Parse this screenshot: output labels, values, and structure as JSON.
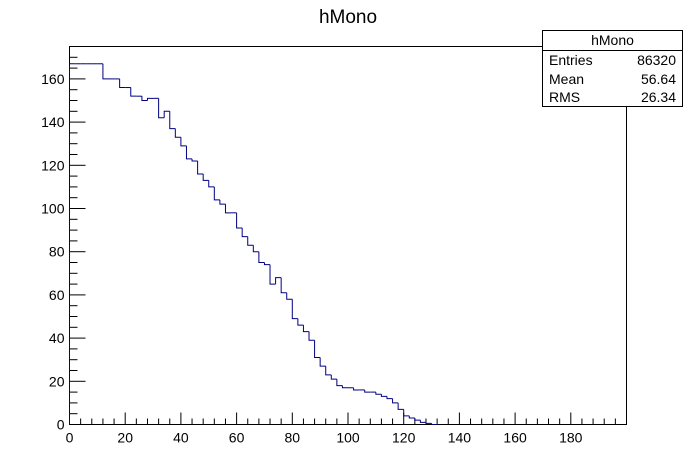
{
  "chart_data": {
    "type": "histogram",
    "title": "hMono",
    "xlabel": "",
    "ylabel": "",
    "xlim": [
      0,
      200
    ],
    "ylim": [
      0,
      175
    ],
    "xticks": [
      0,
      20,
      40,
      60,
      80,
      100,
      120,
      140,
      160,
      180
    ],
    "yticks": [
      0,
      20,
      40,
      60,
      80,
      100,
      120,
      140,
      160
    ],
    "grid": false,
    "line_color": "#000080",
    "bin_width": 2,
    "bins": [
      {
        "x": 0,
        "y": 167
      },
      {
        "x": 2,
        "y": 167
      },
      {
        "x": 4,
        "y": 167
      },
      {
        "x": 6,
        "y": 167
      },
      {
        "x": 8,
        "y": 167
      },
      {
        "x": 10,
        "y": 167
      },
      {
        "x": 12,
        "y": 160
      },
      {
        "x": 14,
        "y": 160
      },
      {
        "x": 16,
        "y": 160
      },
      {
        "x": 18,
        "y": 156
      },
      {
        "x": 20,
        "y": 156
      },
      {
        "x": 22,
        "y": 152
      },
      {
        "x": 24,
        "y": 152
      },
      {
        "x": 26,
        "y": 150
      },
      {
        "x": 28,
        "y": 151
      },
      {
        "x": 30,
        "y": 151
      },
      {
        "x": 32,
        "y": 142
      },
      {
        "x": 34,
        "y": 145
      },
      {
        "x": 36,
        "y": 137
      },
      {
        "x": 38,
        "y": 133
      },
      {
        "x": 40,
        "y": 129
      },
      {
        "x": 42,
        "y": 123
      },
      {
        "x": 44,
        "y": 122
      },
      {
        "x": 46,
        "y": 116
      },
      {
        "x": 48,
        "y": 113
      },
      {
        "x": 50,
        "y": 110
      },
      {
        "x": 52,
        "y": 104
      },
      {
        "x": 54,
        "y": 102
      },
      {
        "x": 56,
        "y": 98
      },
      {
        "x": 58,
        "y": 98
      },
      {
        "x": 60,
        "y": 91
      },
      {
        "x": 62,
        "y": 87
      },
      {
        "x": 64,
        "y": 83
      },
      {
        "x": 66,
        "y": 80
      },
      {
        "x": 68,
        "y": 75
      },
      {
        "x": 70,
        "y": 74
      },
      {
        "x": 72,
        "y": 65
      },
      {
        "x": 74,
        "y": 68
      },
      {
        "x": 76,
        "y": 61
      },
      {
        "x": 78,
        "y": 58
      },
      {
        "x": 80,
        "y": 49
      },
      {
        "x": 82,
        "y": 46
      },
      {
        "x": 84,
        "y": 43
      },
      {
        "x": 86,
        "y": 39
      },
      {
        "x": 88,
        "y": 31
      },
      {
        "x": 90,
        "y": 27
      },
      {
        "x": 92,
        "y": 23
      },
      {
        "x": 94,
        "y": 21
      },
      {
        "x": 96,
        "y": 18
      },
      {
        "x": 98,
        "y": 17
      },
      {
        "x": 100,
        "y": 17
      },
      {
        "x": 102,
        "y": 16
      },
      {
        "x": 104,
        "y": 16
      },
      {
        "x": 106,
        "y": 15
      },
      {
        "x": 108,
        "y": 15
      },
      {
        "x": 110,
        "y": 14
      },
      {
        "x": 112,
        "y": 13
      },
      {
        "x": 114,
        "y": 12
      },
      {
        "x": 116,
        "y": 10
      },
      {
        "x": 118,
        "y": 7
      },
      {
        "x": 120,
        "y": 4
      },
      {
        "x": 122,
        "y": 3
      },
      {
        "x": 124,
        "y": 2
      },
      {
        "x": 126,
        "y": 1
      },
      {
        "x": 128,
        "y": 0.5
      },
      {
        "x": 130,
        "y": 0
      }
    ]
  },
  "stats_box": {
    "title": "hMono",
    "rows": [
      {
        "label": "Entries",
        "value": "86320"
      },
      {
        "label": "Mean",
        "value": "56.64"
      },
      {
        "label": "RMS",
        "value": "26.34"
      }
    ]
  }
}
